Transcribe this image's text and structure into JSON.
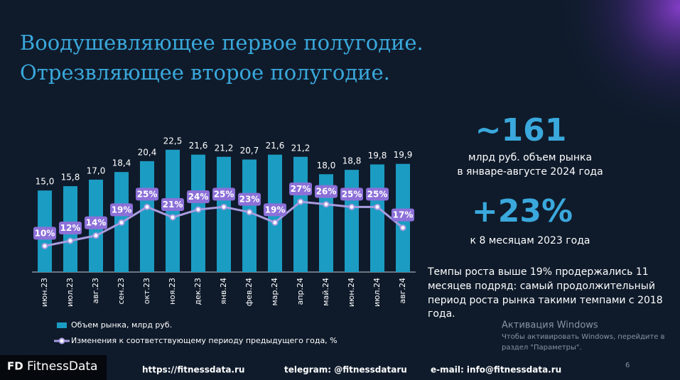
{
  "title_lines": [
    "Воодушевляющее первое полугодие.",
    "Отрезвляющее второе полугодие."
  ],
  "chart_data": {
    "type": "bar",
    "categories": [
      "июн.23",
      "июл.23",
      "авг.23",
      "сен.23",
      "окт.23",
      "ноя.23",
      "дек.23",
      "янв.24",
      "фев.24",
      "мар.24",
      "апр.24",
      "май.24",
      "июн.24",
      "июл.24",
      "авг.24"
    ],
    "series": [
      {
        "name": "Объем рынка, млрд руб.",
        "type": "bar",
        "color": "#1b9cc3",
        "values": [
          15.0,
          15.8,
          17.0,
          18.4,
          20.4,
          22.5,
          21.6,
          21.2,
          20.7,
          21.6,
          21.2,
          18.0,
          18.8,
          19.8,
          19.9
        ],
        "value_labels": [
          "15,0",
          "15,8",
          "17,0",
          "18,4",
          "20,4",
          "22,5",
          "21,6",
          "21,2",
          "20,7",
          "21,6",
          "21,2",
          "18,0",
          "18,8",
          "19,8",
          "19,9"
        ]
      },
      {
        "name": "Изменения к соответствующему периоду предыдущего года, %",
        "type": "line",
        "axis": "y2",
        "color": "#a99ce0",
        "values": [
          10,
          12,
          14,
          19,
          25,
          21,
          24,
          25,
          23,
          19,
          27,
          26,
          25,
          25,
          17
        ],
        "value_labels": [
          "10%",
          "12%",
          "14%",
          "19%",
          "25%",
          "21%",
          "24%",
          "25%",
          "23%",
          "19%",
          "27%",
          "26%",
          "25%",
          "25%",
          "17%"
        ]
      }
    ],
    "ylim": [
      0,
      23
    ],
    "y2lim": [
      0,
      48
    ],
    "label_box_color": "#8c70d8"
  },
  "stats": [
    {
      "value": "~161",
      "lines": [
        "млрд руб. объем рынка",
        "в январе-августе 2024 года"
      ]
    },
    {
      "value": "+23%",
      "lines": [
        "к 8 месяцам 2023 года"
      ]
    }
  ],
  "note": [
    "Темпы роста выше 19% продержались 11",
    "месяцев подряд: самый продолжительный",
    "период роста рынка такими темпами с 2018",
    "года."
  ],
  "watermark": [
    "Активация Windows",
    "Чтобы активировать Windows, перейдите в",
    "раздел \"Параметры\"."
  ],
  "page_number": "6",
  "logo": {
    "mark": "FD",
    "name": "FitnessData"
  },
  "footer": [
    "https://fitnessdata.ru",
    "telegram: @fitnessdataru",
    "e-mail: info@fitnessdata.ru"
  ]
}
